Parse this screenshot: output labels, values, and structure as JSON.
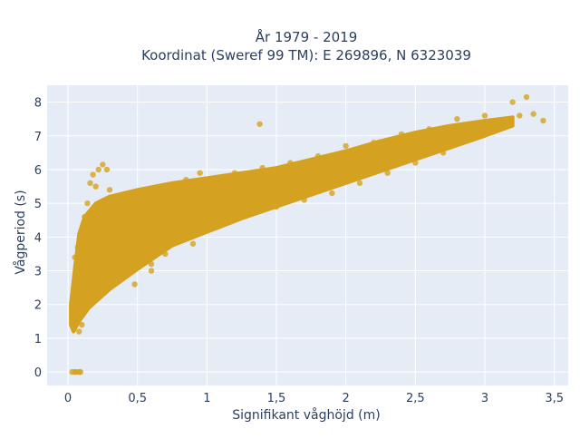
{
  "chart_data": {
    "type": "scatter",
    "title_line1": "År 1979 - 2019",
    "title_line2": "Koordinat (Sweref 99 TM): E 269896, N 6323039",
    "xlabel": "Signifikant våghöjd (m)",
    "ylabel": "Vågperiod (s)",
    "xlim": [
      -0.15,
      3.6
    ],
    "ylim": [
      -0.4,
      8.5
    ],
    "x_ticks": [
      0,
      0.5,
      1,
      1.5,
      2,
      2.5,
      3,
      3.5
    ],
    "x_tick_labels": [
      "0",
      "0,5",
      "1",
      "1,5",
      "2",
      "2,5",
      "3",
      "3,5"
    ],
    "y_ticks": [
      0,
      1,
      2,
      3,
      4,
      5,
      6,
      7,
      8
    ],
    "y_tick_labels": [
      "0",
      "1",
      "2",
      "3",
      "4",
      "5",
      "6",
      "7",
      "8"
    ],
    "grid": true,
    "colors": {
      "marker": "#d4a220",
      "plot_bg": "#e5ecf6",
      "grid": "#ffffff",
      "text": "#2a3f5f"
    },
    "series": [
      {
        "points": [
          [
            0.03,
            0
          ],
          [
            0.05,
            0
          ],
          [
            0.06,
            0
          ],
          [
            0.08,
            0
          ],
          [
            0.09,
            0
          ],
          [
            0.03,
            1.5
          ],
          [
            0.04,
            1.8
          ],
          [
            0.05,
            2.1
          ],
          [
            0.06,
            1.6
          ],
          [
            0.07,
            2.5
          ],
          [
            0.08,
            1.2
          ],
          [
            0.09,
            3.0
          ],
          [
            0.1,
            1.4
          ],
          [
            0.05,
            3.4
          ],
          [
            0.07,
            3.7
          ],
          [
            0.1,
            4.0
          ],
          [
            0.12,
            4.6
          ],
          [
            0.14,
            5.0
          ],
          [
            0.16,
            5.6
          ],
          [
            0.18,
            5.85
          ],
          [
            0.2,
            5.5
          ],
          [
            0.22,
            6.0
          ],
          [
            0.25,
            6.15
          ],
          [
            0.28,
            6.0
          ],
          [
            0.3,
            5.4
          ],
          [
            0.12,
            3.2
          ],
          [
            0.15,
            2.0
          ],
          [
            0.18,
            2.2
          ],
          [
            0.22,
            2.4
          ],
          [
            0.25,
            3.6
          ],
          [
            0.3,
            2.9
          ],
          [
            0.35,
            4.2
          ],
          [
            0.4,
            4.9
          ],
          [
            0.45,
            3.3
          ],
          [
            0.5,
            5.3
          ],
          [
            0.55,
            4.5
          ],
          [
            0.6,
            3.2
          ],
          [
            0.65,
            5.0
          ],
          [
            0.7,
            3.5
          ],
          [
            0.75,
            5.5
          ],
          [
            0.8,
            4.0
          ],
          [
            0.85,
            5.7
          ],
          [
            0.9,
            3.8
          ],
          [
            0.95,
            5.9
          ],
          [
            1.0,
            4.2
          ],
          [
            1.05,
            5.6
          ],
          [
            1.1,
            4.5
          ],
          [
            1.2,
            5.9
          ],
          [
            1.3,
            4.7
          ],
          [
            1.4,
            6.05
          ],
          [
            1.5,
            4.9
          ],
          [
            1.6,
            6.2
          ],
          [
            1.7,
            5.1
          ],
          [
            1.8,
            6.4
          ],
          [
            1.9,
            5.3
          ],
          [
            2.0,
            6.7
          ],
          [
            2.1,
            5.6
          ],
          [
            2.2,
            6.8
          ],
          [
            2.3,
            5.9
          ],
          [
            2.4,
            7.05
          ],
          [
            2.5,
            6.2
          ],
          [
            2.6,
            7.2
          ],
          [
            2.7,
            6.5
          ],
          [
            2.8,
            7.5
          ],
          [
            2.9,
            6.9
          ],
          [
            3.0,
            7.6
          ],
          [
            3.1,
            7.3
          ],
          [
            3.2,
            8.0
          ],
          [
            3.25,
            7.6
          ],
          [
            3.3,
            8.15
          ],
          [
            3.35,
            7.65
          ],
          [
            3.42,
            7.45
          ],
          [
            1.38,
            7.35
          ],
          [
            0.6,
            3.0
          ],
          [
            0.48,
            2.6
          ]
        ]
      }
    ]
  }
}
